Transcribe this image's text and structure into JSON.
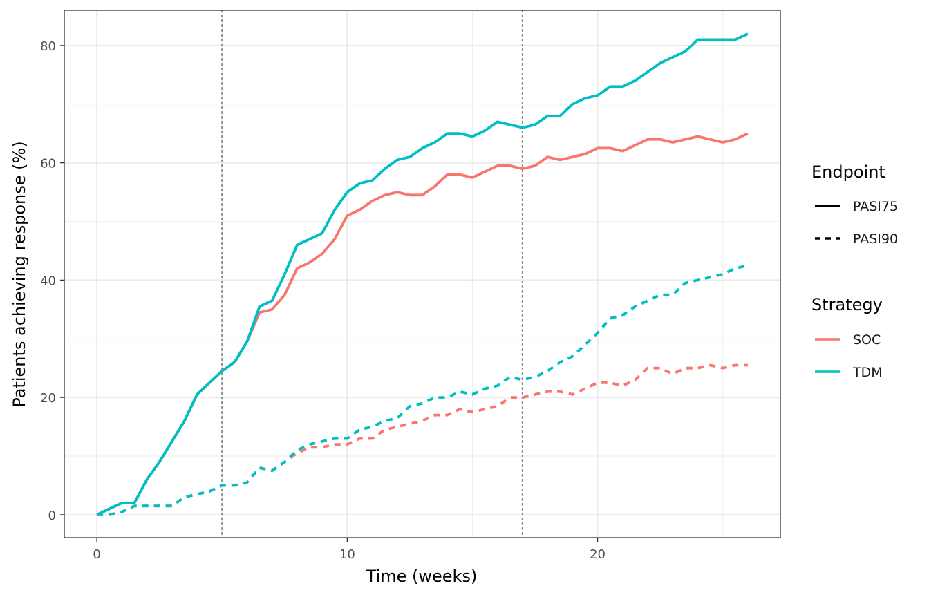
{
  "chart_data": {
    "type": "line",
    "xlabel": "Time (weeks)",
    "ylabel": "Patients achieving response (%)",
    "xlim": [
      -1.3,
      27.3
    ],
    "ylim": [
      -3.9,
      86
    ],
    "x_ticks": [
      0,
      10,
      20
    ],
    "x_tick_labels": [
      "0",
      "10",
      "20"
    ],
    "y_ticks": [
      0,
      20,
      40,
      60,
      80
    ],
    "y_tick_labels": [
      "0",
      "20",
      "40",
      "60",
      "80"
    ],
    "x_minor_ticks": [
      5,
      15,
      25
    ],
    "y_minor_ticks": [
      10,
      30,
      50,
      70
    ],
    "reference_lines_x": [
      5,
      17
    ],
    "grid": true,
    "colors": {
      "SOC": "#F8766D",
      "TDM": "#00BFC4"
    },
    "legend": {
      "placement": "right",
      "endpoint_title": "Endpoint",
      "endpoint_items": [
        {
          "label": "PASI75",
          "linetype": "solid"
        },
        {
          "label": "PASI90",
          "linetype": "dashed"
        }
      ],
      "strategy_title": "Strategy",
      "strategy_items": [
        {
          "label": "SOC",
          "color": "#F8766D"
        },
        {
          "label": "TDM",
          "color": "#00BFC4"
        }
      ]
    },
    "series": [
      {
        "strategy": "SOC",
        "endpoint": "PASI75",
        "x": [
          0,
          0.5,
          1,
          1.5,
          2,
          2.5,
          3,
          3.5,
          4,
          4.5,
          5,
          5.5,
          6,
          6.5,
          7,
          7.5,
          8,
          8.5,
          9,
          9.5,
          10,
          10.5,
          11,
          11.5,
          12,
          12.5,
          13,
          13.5,
          14,
          14.5,
          15,
          15.5,
          16,
          16.5,
          17,
          17.5,
          18,
          18.5,
          19,
          19.5,
          20,
          20.5,
          21,
          21.5,
          22,
          22.5,
          23,
          23.5,
          24,
          24.5,
          25,
          25.5,
          26
        ],
        "y": [
          0,
          1,
          2,
          2,
          6,
          9,
          12.5,
          16,
          20.5,
          22.5,
          24.5,
          26,
          29.5,
          34.5,
          35,
          37.5,
          42,
          43,
          44.5,
          47,
          51,
          52,
          53.5,
          54.5,
          55,
          54.5,
          54.5,
          56,
          58,
          58,
          57.5,
          58.5,
          59.5,
          59.5,
          59,
          59.5,
          61,
          60.5,
          61,
          61.5,
          62.5,
          62.5,
          62,
          63,
          64,
          64,
          63.5,
          64,
          64.5,
          64,
          63.5,
          64,
          65
        ]
      },
      {
        "strategy": "TDM",
        "endpoint": "PASI75",
        "x": [
          0,
          0.5,
          1,
          1.5,
          2,
          2.5,
          3,
          3.5,
          4,
          4.5,
          5,
          5.5,
          6,
          6.5,
          7,
          7.5,
          8,
          8.5,
          9,
          9.5,
          10,
          10.5,
          11,
          11.5,
          12,
          12.5,
          13,
          13.5,
          14,
          14.5,
          15,
          15.5,
          16,
          16.5,
          17,
          17.5,
          18,
          18.5,
          19,
          19.5,
          20,
          20.5,
          21,
          21.5,
          22,
          22.5,
          23,
          23.5,
          24,
          24.5,
          25,
          25.5,
          26
        ],
        "y": [
          0,
          1,
          2,
          2,
          6,
          9,
          12.5,
          16,
          20.5,
          22.5,
          24.5,
          26,
          29.5,
          35.5,
          36.5,
          41,
          46,
          47,
          48,
          52,
          55,
          56.5,
          57,
          59,
          60.5,
          61,
          62.5,
          63.5,
          65,
          65,
          64.5,
          65.5,
          67,
          66.5,
          66,
          66.5,
          68,
          68,
          70,
          71,
          71.5,
          73,
          73,
          74,
          75.5,
          77,
          78,
          79,
          81,
          81,
          81,
          81,
          82
        ]
      },
      {
        "strategy": "SOC",
        "endpoint": "PASI90",
        "x": [
          0,
          0.5,
          1,
          1.5,
          2,
          2.5,
          3,
          3.5,
          4,
          4.5,
          5,
          5.5,
          6,
          6.5,
          7,
          7.5,
          8,
          8.5,
          9,
          9.5,
          10,
          10.5,
          11,
          11.5,
          12,
          12.5,
          13,
          13.5,
          14,
          14.5,
          15,
          15.5,
          16,
          16.5,
          17,
          17.5,
          18,
          18.5,
          19,
          19.5,
          20,
          20.5,
          21,
          21.5,
          22,
          22.5,
          23,
          23.5,
          24,
          24.5,
          25,
          25.5,
          26
        ],
        "y": [
          0,
          0,
          0.5,
          1.5,
          1.5,
          1.5,
          1.5,
          3,
          3.5,
          4,
          5,
          5,
          5.5,
          8,
          7.5,
          9,
          10.5,
          11.5,
          11.5,
          12,
          12,
          13,
          13,
          14.5,
          15,
          15.5,
          16,
          17,
          17,
          18,
          17.5,
          18,
          18.5,
          20,
          20,
          20.5,
          21,
          21,
          20.5,
          21.5,
          22.5,
          22.5,
          22,
          23,
          25,
          25,
          24,
          25,
          25,
          25.5,
          25,
          25.5,
          25.5
        ]
      },
      {
        "strategy": "TDM",
        "endpoint": "PASI90",
        "x": [
          0,
          0.5,
          1,
          1.5,
          2,
          2.5,
          3,
          3.5,
          4,
          4.5,
          5,
          5.5,
          6,
          6.5,
          7,
          7.5,
          8,
          8.5,
          9,
          9.5,
          10,
          10.5,
          11,
          11.5,
          12,
          12.5,
          13,
          13.5,
          14,
          14.5,
          15,
          15.5,
          16,
          16.5,
          17,
          17.5,
          18,
          18.5,
          19,
          19.5,
          20,
          20.5,
          21,
          21.5,
          22,
          22.5,
          23,
          23.5,
          24,
          24.5,
          25,
          25.5,
          26
        ],
        "y": [
          0,
          0,
          0.5,
          1.5,
          1.5,
          1.5,
          1.5,
          3,
          3.5,
          4,
          5,
          5,
          5.5,
          8,
          7.5,
          9,
          11,
          12,
          12.5,
          13,
          13,
          14.5,
          15,
          16,
          16.5,
          18.5,
          19,
          20,
          20,
          21,
          20.5,
          21.5,
          22,
          23.5,
          23,
          23.5,
          24.5,
          26,
          27,
          29,
          31,
          33.5,
          34,
          35.5,
          36.5,
          37.5,
          37.5,
          39.5,
          40,
          40.5,
          41,
          42,
          42.5
        ]
      }
    ]
  }
}
